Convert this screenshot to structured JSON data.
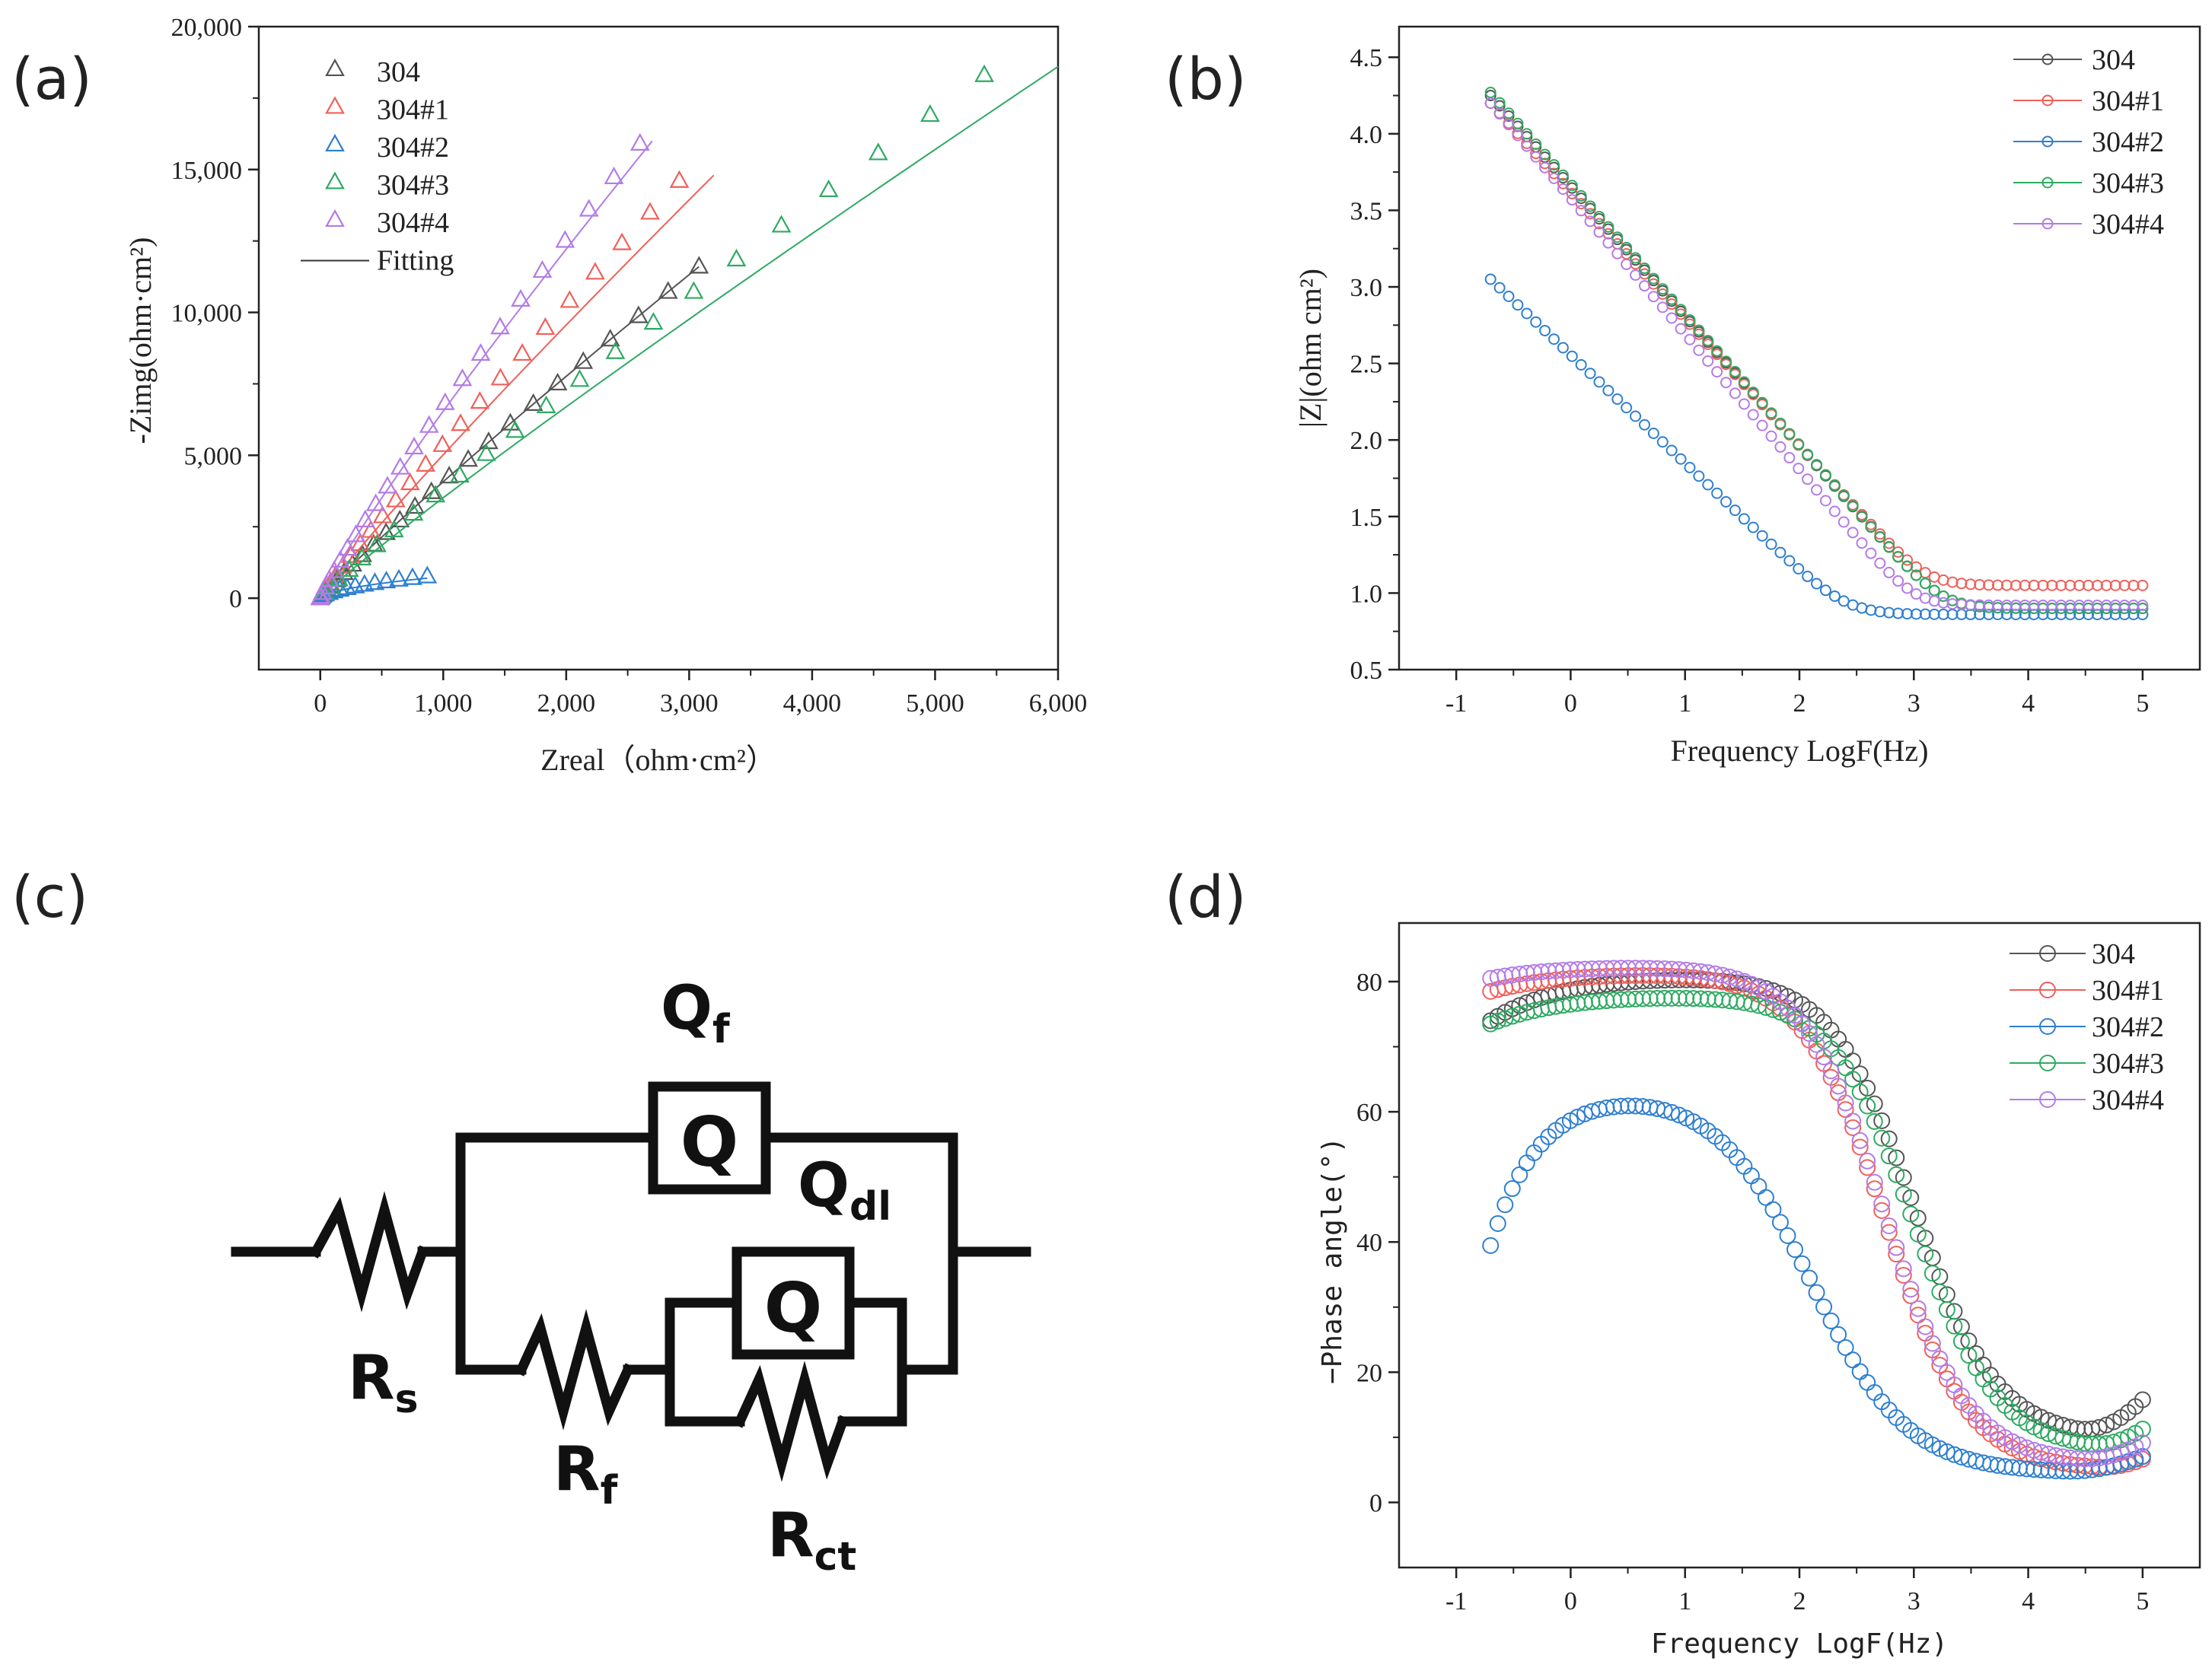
{
  "panels": {
    "a": {
      "label": "(a)"
    },
    "b": {
      "label": "(b)"
    },
    "c": {
      "label": "(c)"
    },
    "d": {
      "label": "(d)"
    }
  },
  "colors": {
    "304": "#555555",
    "304#1": "#f0605a",
    "304#2": "#2e7fd0",
    "304#3": "#2eaa62",
    "304#4": "#b37be8"
  },
  "chart_data": [
    {
      "id": "a",
      "type": "scatter",
      "xlabel": "Zreal（ohm·cm²）",
      "ylabel": "-Zimg(ohm·cm²)",
      "xlim": [
        -500,
        6000
      ],
      "ylim": [
        -2500,
        20000
      ],
      "xticks": [
        0,
        1000,
        2000,
        3000,
        4000,
        5000,
        6000
      ],
      "xtick_labels": [
        "0",
        "1,000",
        "2,000",
        "3,000",
        "4,000",
        "5,000",
        "6,000"
      ],
      "yticks": [
        0,
        5000,
        10000,
        15000,
        20000
      ],
      "ytick_labels": [
        "0",
        "5,000",
        "10,000",
        "15,000",
        "20,000"
      ],
      "legend_position": "top-left",
      "legend": [
        "304",
        "304#1",
        "304#2",
        "304#3",
        "304#4",
        "Fitting"
      ],
      "marker": "triangle",
      "series": [
        {
          "name": "304",
          "end": [
            3080,
            11600
          ],
          "exp": 0.93
        },
        {
          "name": "304#1",
          "end": [
            2920,
            14600
          ],
          "exp": 0.93,
          "fit_end": [
            3200,
            14800
          ]
        },
        {
          "name": "304#2",
          "end": [
            870,
            760
          ],
          "exp": 0.6
        },
        {
          "name": "304#3",
          "end": [
            5400,
            18300
          ],
          "exp": 0.93,
          "fit_end": [
            6000,
            18600
          ]
        },
        {
          "name": "304#4",
          "end": [
            2600,
            15900
          ],
          "exp": 0.9,
          "fit_end": [
            2700,
            16000
          ]
        }
      ]
    },
    {
      "id": "b",
      "type": "scatter",
      "xlabel": "Frequency LogF(Hz)",
      "ylabel": "|Z|(ohm  cm²)",
      "xlim": [
        -1.5,
        5.5
      ],
      "ylim": [
        0.5,
        4.7
      ],
      "xticks": [
        -1,
        0,
        1,
        2,
        3,
        4,
        5
      ],
      "yticks": [
        0.5,
        1.0,
        1.5,
        2.0,
        2.5,
        3.0,
        3.5,
        4.0,
        4.5
      ],
      "ytick_labels": [
        "0.5",
        "1.0",
        "1.5",
        "2.0",
        "2.5",
        "3.0",
        "3.5",
        "4.0",
        "4.5"
      ],
      "legend_position": "top-right",
      "legend": [
        "304",
        "304#1",
        "304#2",
        "304#3",
        "304#4"
      ],
      "marker": "circle",
      "series": [
        {
          "name": "304",
          "start": 4.25,
          "end": 0.9,
          "corner": 3.25
        },
        {
          "name": "304#1",
          "start": 4.2,
          "end": 1.05,
          "corner": 3.1
        },
        {
          "name": "304#2",
          "start": 3.05,
          "end": 0.86,
          "corner": 2.4
        },
        {
          "name": "304#3",
          "start": 4.27,
          "end": 0.9,
          "corner": 3.25
        },
        {
          "name": "304#4",
          "start": 4.2,
          "end": 0.92,
          "corner": 3.0
        }
      ]
    },
    {
      "id": "d",
      "type": "scatter",
      "xlabel": "Frequency LogF(Hz)",
      "ylabel": "−Phase angle(°)",
      "xlim": [
        -1.5,
        5.5
      ],
      "ylim": [
        -10,
        89
      ],
      "xticks": [
        -1,
        0,
        1,
        2,
        3,
        4,
        5
      ],
      "yticks": [
        0,
        20,
        40,
        60,
        80
      ],
      "legend_position": "top-right",
      "legend": [
        "304",
        "304#1",
        "304#2",
        "304#3",
        "304#4"
      ],
      "marker": "circle",
      "series": [
        {
          "name": "304",
          "start": 74,
          "plateau": 81,
          "mid": 3.0,
          "min": 10,
          "minx": 4.4,
          "end": 15.5
        },
        {
          "name": "304#1",
          "start": 78.5,
          "plateau": 81.5,
          "mid": 2.75,
          "min": 5,
          "minx": 4.6,
          "end": 6.5
        },
        {
          "name": "304#2",
          "start": 39.5,
          "peak": 63.5,
          "peakx": 0.7,
          "mid": 2.1,
          "min": 4.5,
          "minx": 4.3,
          "end": 7
        },
        {
          "name": "304#3",
          "start": 73.5,
          "plateau": 78,
          "mid": 3.0,
          "min": 8,
          "minx": 4.5,
          "end": 11
        },
        {
          "name": "304#4",
          "start": 80.5,
          "plateau": 82.5,
          "mid": 2.75,
          "min": 6,
          "minx": 4.4,
          "end": 9
        }
      ]
    }
  ],
  "circuit": {
    "labels": {
      "Rs": {
        "main": "R",
        "sub": "s"
      },
      "Rf": {
        "main": "R",
        "sub": "f"
      },
      "Rct": {
        "main": "R",
        "sub": "ct"
      },
      "Qf": {
        "main": "Q",
        "sub": "f"
      },
      "Qdl": {
        "main": "Q",
        "sub": "dl"
      },
      "cpe_symbol": "Q"
    }
  }
}
